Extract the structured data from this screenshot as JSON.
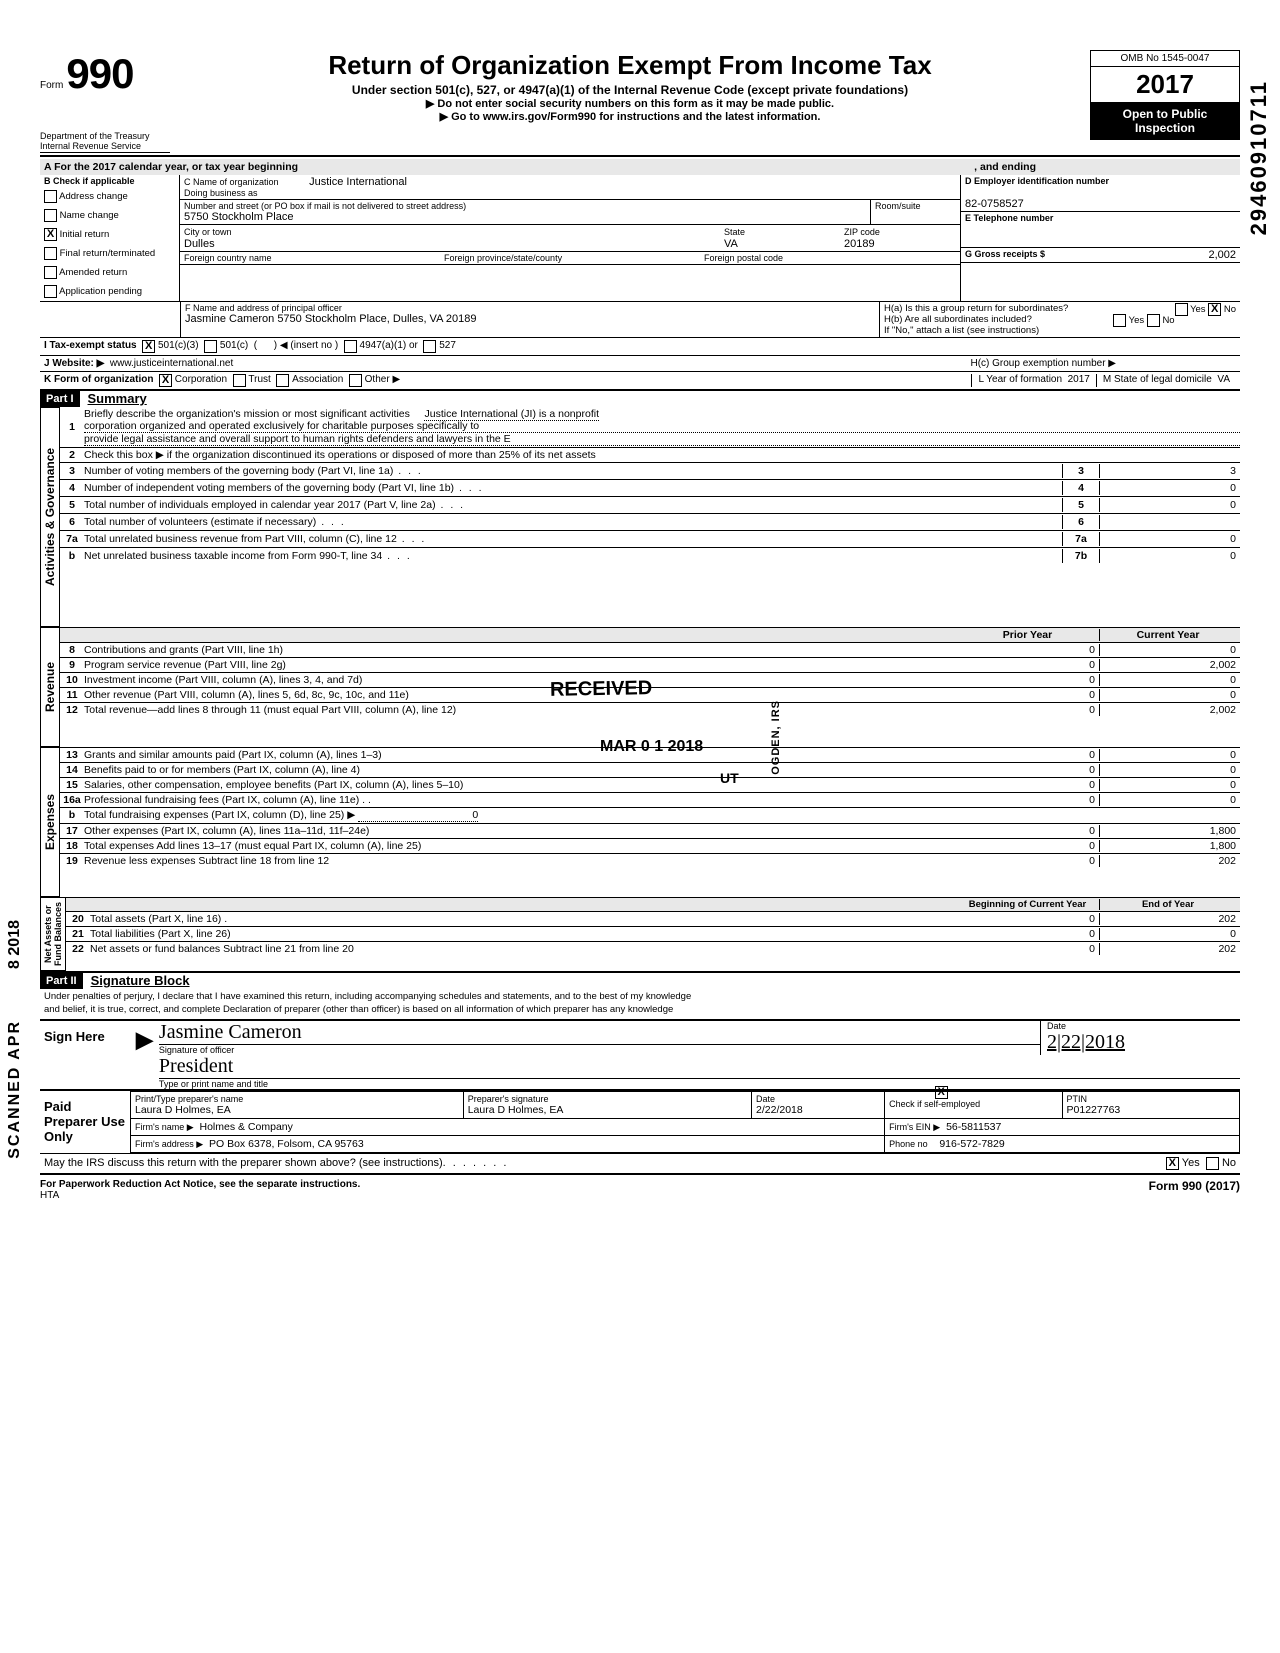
{
  "header": {
    "form_word": "Form",
    "form_number": "990",
    "title": "Return of Organization Exempt From Income Tax",
    "subtitle": "Under section 501(c), 527, or 4947(a)(1) of the Internal Revenue Code (except private foundations)",
    "instr1": "▶   Do not enter social security numbers on this form as it may be made public.",
    "instr2": "▶  Go to www.irs.gov/Form990 for instructions and the latest information.",
    "omb": "OMB No  1545-0047",
    "year": "2017",
    "public1": "Open to Public",
    "public2": "Inspection",
    "dept1": "Department of the Treasury",
    "dept2": "Internal Revenue Service",
    "side_code": "29460910711"
  },
  "lineA": {
    "label": "A   For the 2017 calendar year, or tax year beginning",
    "and_ending": ", and ending"
  },
  "boxB": {
    "label": "B   Check if applicable",
    "items": [
      {
        "label": "Address change",
        "checked": false
      },
      {
        "label": "Name change",
        "checked": false
      },
      {
        "label": "Initial return",
        "checked": true
      },
      {
        "label": "Final return/terminated",
        "checked": false
      },
      {
        "label": "Amended return",
        "checked": false
      },
      {
        "label": "Application pending",
        "checked": false
      }
    ]
  },
  "boxC": {
    "name_label": "C  Name of organization",
    "name": "Justice International",
    "dba_label": "Doing business as",
    "addr_label": "Number and street (or PO  box if mail is not delivered to street address)",
    "room_label": "Room/suite",
    "addr": "5750 Stockholm Place",
    "city_label": "City or town",
    "city": "Dulles",
    "state_label": "State",
    "state": "VA",
    "zip_label": "ZIP code",
    "zip": "20189",
    "fcountry_label": "Foreign country name",
    "fprov_label": "Foreign province/state/county",
    "fpostal_label": "Foreign postal code"
  },
  "boxD": {
    "label": "D   Employer identification number",
    "value": "82-0758527"
  },
  "boxE": {
    "label": "E   Telephone number"
  },
  "boxG": {
    "label": "G   Gross receipts $",
    "value": "2,002"
  },
  "boxF": {
    "label": "F   Name and address of principal officer",
    "value": "Jasmine Cameron 5750 Stockholm Place, Dulles, VA  20189"
  },
  "boxH": {
    "a": "H(a) Is this a group return for subordinates?",
    "b": "H(b) Are all subordinates included?",
    "note": "If \"No,\" attach a list  (see instructions)",
    "c": "H(c) Group exemption number ▶",
    "yes": "Yes",
    "no": "No"
  },
  "lineI": {
    "label": "I     Tax-exempt status",
    "opts": [
      "501(c)(3)",
      "501(c)",
      "◀ (insert no )",
      "4947(a)(1) or",
      "527"
    ]
  },
  "lineJ": {
    "label": "J   Website: ▶",
    "value": "www.justiceinternational.net"
  },
  "lineK": {
    "label": "K  Form of organization",
    "opts": [
      "Corporation",
      "Trust",
      "Association",
      "Other ▶"
    ],
    "year_label": "L Year of formation",
    "year": "2017",
    "state_label": "M State of legal domicile",
    "state": "VA"
  },
  "part1": {
    "bar": "Part I",
    "title": "Summary",
    "line1_label": "Briefly describe the organization's mission or most significant activities",
    "line1_text1": "Justice International (JI) is a nonprofit",
    "line1_text2": "corporation organized and operated exclusively for charitable purposes specifically to",
    "line1_text3": "provide legal assistance and overall support to human rights defenders and lawyers in the E",
    "line2": "Check this box  ▶        if the organization discontinued its operations or disposed of more than 25% of its net assets",
    "vtab_ag": "Activities & Governance",
    "vtab_rev": "Revenue",
    "vtab_exp": "Expenses",
    "vtab_net": "Net Assets or\nFund Balances",
    "col_prior": "Prior Year",
    "col_curr": "Current Year",
    "col_beg": "Beginning of Current Year",
    "col_end": "End of Year",
    "rows_ag": [
      {
        "n": "3",
        "d": "Number of voting members of the governing body (Part VI, line 1a)",
        "box": "3",
        "val": "3"
      },
      {
        "n": "4",
        "d": "Number of independent voting members of the governing body (Part VI, line 1b)",
        "box": "4",
        "val": "0"
      },
      {
        "n": "5",
        "d": "Total number of individuals employed in calendar year 2017 (Part V, line 2a)",
        "box": "5",
        "val": "0"
      },
      {
        "n": "6",
        "d": "Total number of volunteers (estimate if necessary)",
        "box": "6",
        "val": ""
      },
      {
        "n": "7a",
        "d": "Total unrelated business revenue from Part VIII, column (C), line 12",
        "box": "7a",
        "val": "0"
      },
      {
        "n": "b",
        "d": "Net unrelated business taxable income from Form 990-T, line 34",
        "box": "7b",
        "val": "0"
      }
    ],
    "rows_rev": [
      {
        "n": "8",
        "d": "Contributions and grants (Part VIII, line 1h)",
        "p": "0",
        "c": "0"
      },
      {
        "n": "9",
        "d": "Program service revenue (Part VIII, line 2g)",
        "p": "0",
        "c": "2,002"
      },
      {
        "n": "10",
        "d": "Investment income (Part VIII, column (A), lines 3, 4, and 7d)",
        "p": "0",
        "c": "0"
      },
      {
        "n": "11",
        "d": "Other revenue (Part VIII, column (A), lines 5, 6d, 8c, 9c, 10c, and 11e)",
        "p": "0",
        "c": "0"
      },
      {
        "n": "12",
        "d": "Total revenue—add lines 8 through 11 (must equal Part VIII, column (A), line 12)",
        "p": "0",
        "c": "2,002"
      }
    ],
    "rows_exp": [
      {
        "n": "13",
        "d": "Grants and similar amounts paid (Part IX, column (A), lines 1–3)",
        "p": "0",
        "c": "0"
      },
      {
        "n": "14",
        "d": "Benefits paid to or for members (Part IX, column (A), line 4)",
        "p": "0",
        "c": "0"
      },
      {
        "n": "15",
        "d": "Salaries, other compensation, employee benefits (Part IX, column (A), lines 5–10)",
        "p": "0",
        "c": "0"
      },
      {
        "n": "16a",
        "d": "Professional fundraising fees (Part IX, column (A), line 11e) .  .",
        "p": "0",
        "c": "0"
      },
      {
        "n": "b",
        "d": "Total fundraising expenses (Part IX, column (D), line 25)  ▶",
        "fr": "0",
        "p": "",
        "c": ""
      },
      {
        "n": "17",
        "d": "Other expenses (Part IX, column (A), lines 11a–11d, 11f–24e)",
        "p": "0",
        "c": "1,800"
      },
      {
        "n": "18",
        "d": "Total expenses  Add lines 13–17 (must equal Part IX, column (A), line 25)",
        "p": "0",
        "c": "1,800"
      },
      {
        "n": "19",
        "d": "Revenue less expenses  Subtract line 18 from line 12",
        "p": "0",
        "c": "202"
      }
    ],
    "rows_net": [
      {
        "n": "20",
        "d": "Total assets (Part X, line 16) .",
        "p": "0",
        "c": "202"
      },
      {
        "n": "21",
        "d": "Total liabilities (Part X, line 26)",
        "p": "0",
        "c": "0"
      },
      {
        "n": "22",
        "d": "Net assets or fund balances  Subtract line 21 from line 20",
        "p": "0",
        "c": "202"
      }
    ]
  },
  "part2": {
    "bar": "Part II",
    "title": "Signature Block",
    "perjury1": "Under penalties of perjury, I declare that I have examined this return, including accompanying schedules and statements, and to the best of my knowledge",
    "perjury2": "and belief, it is true, correct, and complete  Declaration of preparer (other than officer) is based on all information of which preparer has any knowledge",
    "sign_here": "Sign Here",
    "sig_name": "Jasmine Cameron",
    "sig_label": "Signature of officer",
    "sig_title": "President",
    "title_label": "Type or print name and title",
    "date_label": "Date",
    "date_val": "2|22|2018",
    "paid": "Paid Preparer Use Only",
    "prep_name_label": "Print/Type preparer's name",
    "prep_name": "Laura D Holmes, EA",
    "prep_sig_label": "Preparer's signature",
    "prep_sig": "Laura D Holmes, EA",
    "prep_date": "2/22/2018",
    "check_if": "Check        if self-employed",
    "ptin_label": "PTIN",
    "ptin": "P01227763",
    "firm_name_label": "Firm's name    ▶",
    "firm_name": "Holmes & Company",
    "firm_ein_label": "Firm's EIN  ▶",
    "firm_ein": "56-5811537",
    "firm_addr_label": "Firm's address  ▶",
    "firm_addr": "PO Box 6378, Folsom, CA 95763",
    "phone_label": "Phone no",
    "phone": "916-572-7829",
    "discuss": "May the IRS discuss this return with the preparer shown above? (see instructions)",
    "yes": "Yes",
    "no": "No"
  },
  "footer": {
    "left": "For Paperwork Reduction Act Notice, see the separate instructions.",
    "mid": "HTA",
    "right": "Form 990 (2017)"
  },
  "stamps": {
    "received": "RECEIVED",
    "date": "MAR 0 1 2018",
    "ut": "UT",
    "ogden": "OGDEN, IRS",
    "scanned": "SCANNED APR",
    "year": "8  2018"
  },
  "colors": {
    "ink": "#000000",
    "bg": "#ffffff",
    "shade": "#d9d9d9"
  }
}
